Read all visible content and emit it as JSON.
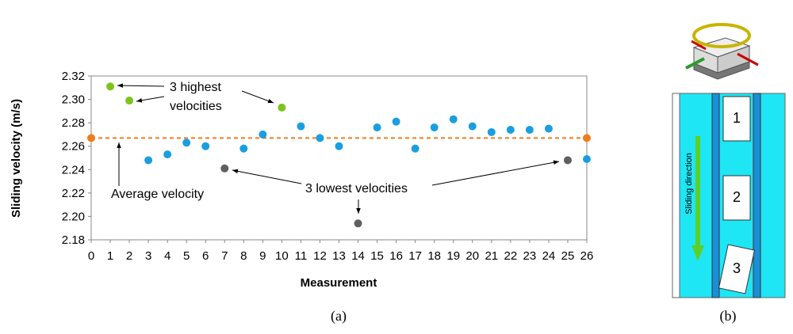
{
  "chart_data": {
    "type": "scatter",
    "y_label": "Sliding velocity (m/s)",
    "x_label": "Measurement",
    "x": [
      1,
      2,
      3,
      4,
      5,
      6,
      7,
      8,
      9,
      10,
      11,
      12,
      13,
      14,
      15,
      16,
      17,
      18,
      19,
      20,
      21,
      22,
      23,
      24,
      25,
      26
    ],
    "values": [
      2.311,
      2.299,
      2.248,
      2.253,
      2.263,
      2.26,
      2.241,
      2.258,
      2.27,
      2.293,
      2.277,
      2.267,
      2.26,
      2.194,
      2.276,
      2.281,
      2.258,
      2.276,
      2.283,
      2.277,
      2.272,
      2.274,
      2.274,
      2.275,
      2.248,
      2.249
    ],
    "point_colors": [
      "#7dc31e",
      "#7dc31e",
      "#1a9ee0",
      "#1a9ee0",
      "#1a9ee0",
      "#1a9ee0",
      "#5f5f5f",
      "#1a9ee0",
      "#1a9ee0",
      "#7dc31e",
      "#1a9ee0",
      "#1a9ee0",
      "#1a9ee0",
      "#5f5f5f",
      "#1a9ee0",
      "#1a9ee0",
      "#1a9ee0",
      "#1a9ee0",
      "#1a9ee0",
      "#1a9ee0",
      "#1a9ee0",
      "#1a9ee0",
      "#1a9ee0",
      "#1a9ee0",
      "#5f5f5f",
      "#1a9ee0"
    ],
    "average": {
      "value": 2.267,
      "x": [
        0,
        26
      ],
      "color": "#f07c1c"
    },
    "xlim": [
      0,
      26
    ],
    "ylim": [
      2.18,
      2.32
    ],
    "xticks": [
      0,
      1,
      2,
      3,
      4,
      5,
      6,
      7,
      8,
      9,
      10,
      11,
      12,
      13,
      14,
      15,
      16,
      17,
      18,
      19,
      20,
      21,
      22,
      23,
      24,
      25,
      26
    ],
    "yticks": [
      {
        "value": 2.18,
        "label": "2.18"
      },
      {
        "value": 2.2,
        "label": "2.20"
      },
      {
        "value": 2.22,
        "label": "2.22"
      },
      {
        "value": 2.24,
        "label": "2.24"
      },
      {
        "value": 2.26,
        "label": "2.26"
      },
      {
        "value": 2.28,
        "label": "2.28"
      },
      {
        "value": 2.3,
        "label": "2.30"
      },
      {
        "value": 2.32,
        "label": "2.32"
      }
    ],
    "annotations": {
      "highest": [
        "3 highest",
        "velocities"
      ],
      "lowest": "3 lowest velocities",
      "average": "Average velocity"
    },
    "panel_label": "(a)"
  },
  "panel_b": {
    "label": "(b)",
    "blocks": [
      "1",
      "2",
      "3"
    ],
    "direction": "Sliding direction"
  }
}
